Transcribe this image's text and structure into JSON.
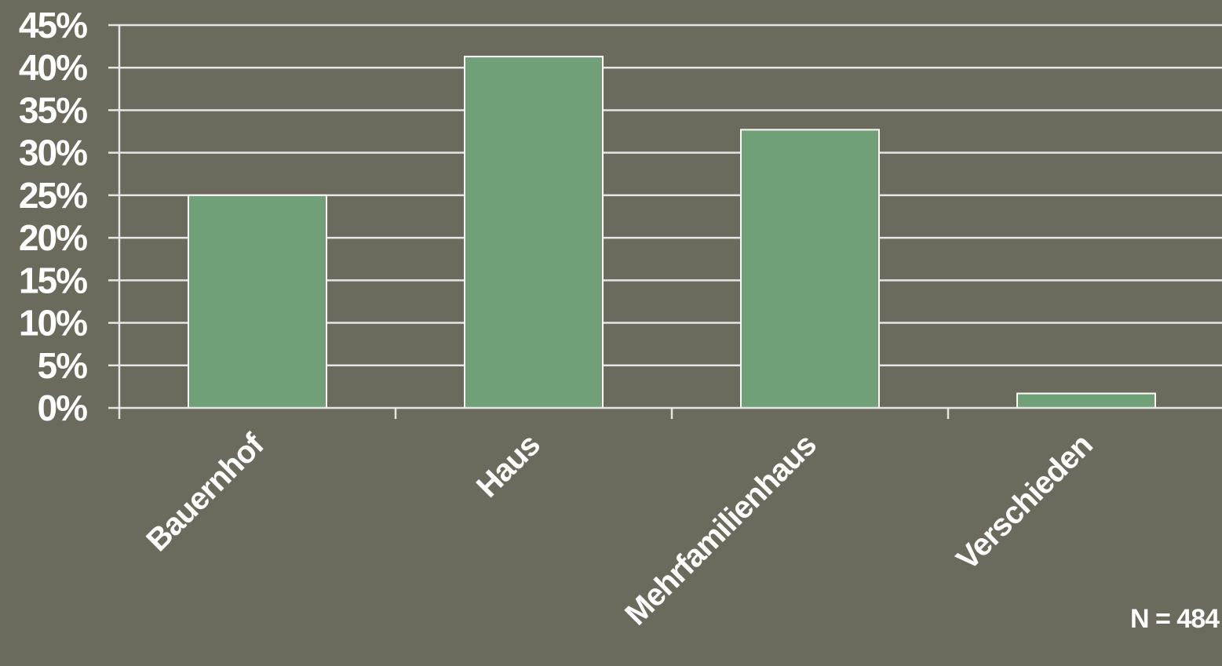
{
  "chart_data": {
    "type": "bar",
    "categories": [
      "Bauernhof",
      "Haus",
      "Mehrfamilienhaus",
      "Verschieden"
    ],
    "values": [
      25,
      41.3,
      32.7,
      1.7
    ],
    "ylim": [
      0,
      45
    ],
    "yticks": [
      "0%",
      "5%",
      "10%",
      "15%",
      "20%",
      "25%",
      "30%",
      "35%",
      "40%",
      "45%"
    ],
    "grid": true,
    "annotation": "N = 484",
    "colors": {
      "bar": "#70a078",
      "background": "#6b6a5c",
      "grid": "#e6e6e6",
      "text": "#ffffff"
    }
  }
}
